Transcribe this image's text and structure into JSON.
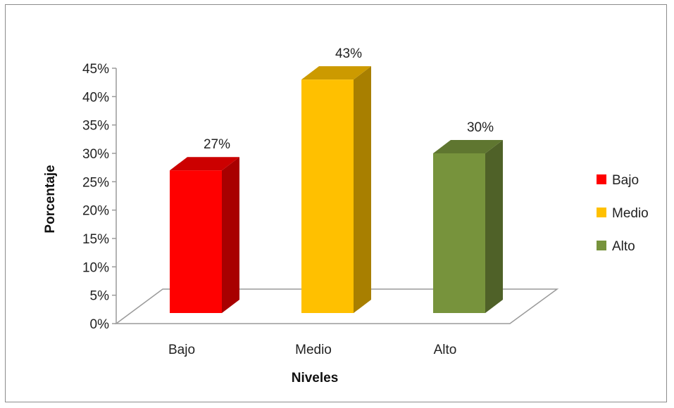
{
  "chart_data": {
    "type": "bar",
    "style": "3d-column",
    "categories": [
      "Bajo",
      "Medio",
      "Alto"
    ],
    "values": [
      27,
      43,
      30
    ],
    "data_labels": [
      "27%",
      "43%",
      "30%"
    ],
    "colors": {
      "Bajo": "#ff0000",
      "Medio": "#ffc000",
      "Alto": "#77933c"
    },
    "ylim": [
      0,
      45
    ],
    "yticks": [
      "0%",
      "5%",
      "10%",
      "15%",
      "20%",
      "25%",
      "30%",
      "35%",
      "40%",
      "45%"
    ],
    "xlabel": "Niveles",
    "ylabel": "Porcentaje",
    "legend": {
      "position": "right",
      "entries": [
        "Bajo",
        "Medio",
        "Alto"
      ]
    },
    "grid": false
  }
}
